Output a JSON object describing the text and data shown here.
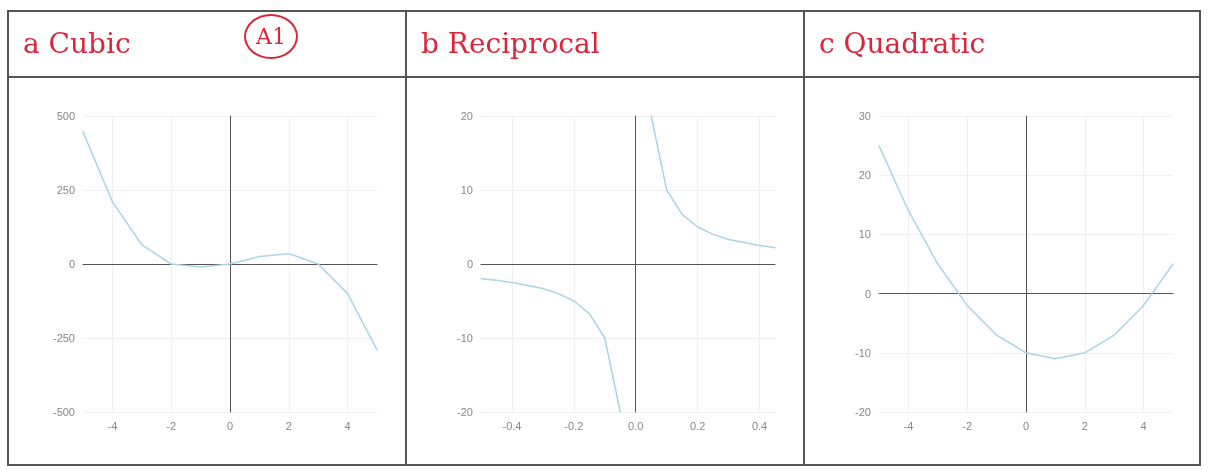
{
  "chart_data": [
    {
      "type": "line",
      "title": "a Cubic",
      "annotations": [
        "A1"
      ],
      "color": "#a9d6e5",
      "grid": true,
      "x": [
        -5,
        -4,
        -3,
        -2,
        -1,
        0,
        1,
        2,
        3,
        4,
        5
      ],
      "values": [
        447,
        210,
        65,
        0,
        -10,
        0,
        25,
        35,
        0,
        -100,
        -290
      ],
      "xlim": [
        -5,
        5
      ],
      "xticks": [
        -4,
        -2,
        0,
        2,
        4
      ],
      "ylim": [
        -500,
        500
      ],
      "yticks": [
        -500,
        -250,
        0,
        250,
        500
      ]
    },
    {
      "type": "line",
      "title": "b Reciprocal",
      "color": "#a9d6e5",
      "grid": true,
      "x": [
        -0.5,
        -0.45,
        -0.4,
        -0.35,
        -0.3,
        -0.25,
        -0.2,
        -0.15,
        -0.1,
        -0.05,
        0,
        0.05,
        0.1,
        0.15,
        0.2,
        0.25,
        0.3,
        0.35,
        0.4,
        0.45
      ],
      "values": [
        -2,
        -2.2,
        -2.5,
        -2.9,
        -3.3,
        -4,
        -5,
        -6.7,
        -10,
        -20,
        null,
        20,
        10,
        6.7,
        5,
        4,
        3.3,
        2.9,
        2.5,
        2.2
      ],
      "xlim": [
        -0.5,
        0.45
      ],
      "xticks": [
        -0.4,
        -0.2,
        {
          "value": 0,
          "label": "0.0"
        },
        0.2,
        0.4
      ],
      "ylim": [
        -20,
        20
      ],
      "yticks": [
        -20,
        -10,
        0,
        10,
        20
      ]
    },
    {
      "type": "line",
      "title": "c Quadratic",
      "color": "#a9d6e5",
      "grid": true,
      "x": [
        -5,
        -4,
        -3,
        -2,
        -1,
        0,
        1,
        2,
        3,
        4,
        5
      ],
      "values": [
        25,
        14,
        5,
        -2,
        -7,
        -10,
        -11,
        -10,
        -7,
        -2,
        5
      ],
      "xlim": [
        -5,
        5
      ],
      "xticks": [
        -4,
        -2,
        0,
        2,
        4
      ],
      "ylim": [
        -20,
        30
      ],
      "yticks": [
        -20,
        -10,
        0,
        10,
        20,
        30
      ]
    }
  ]
}
